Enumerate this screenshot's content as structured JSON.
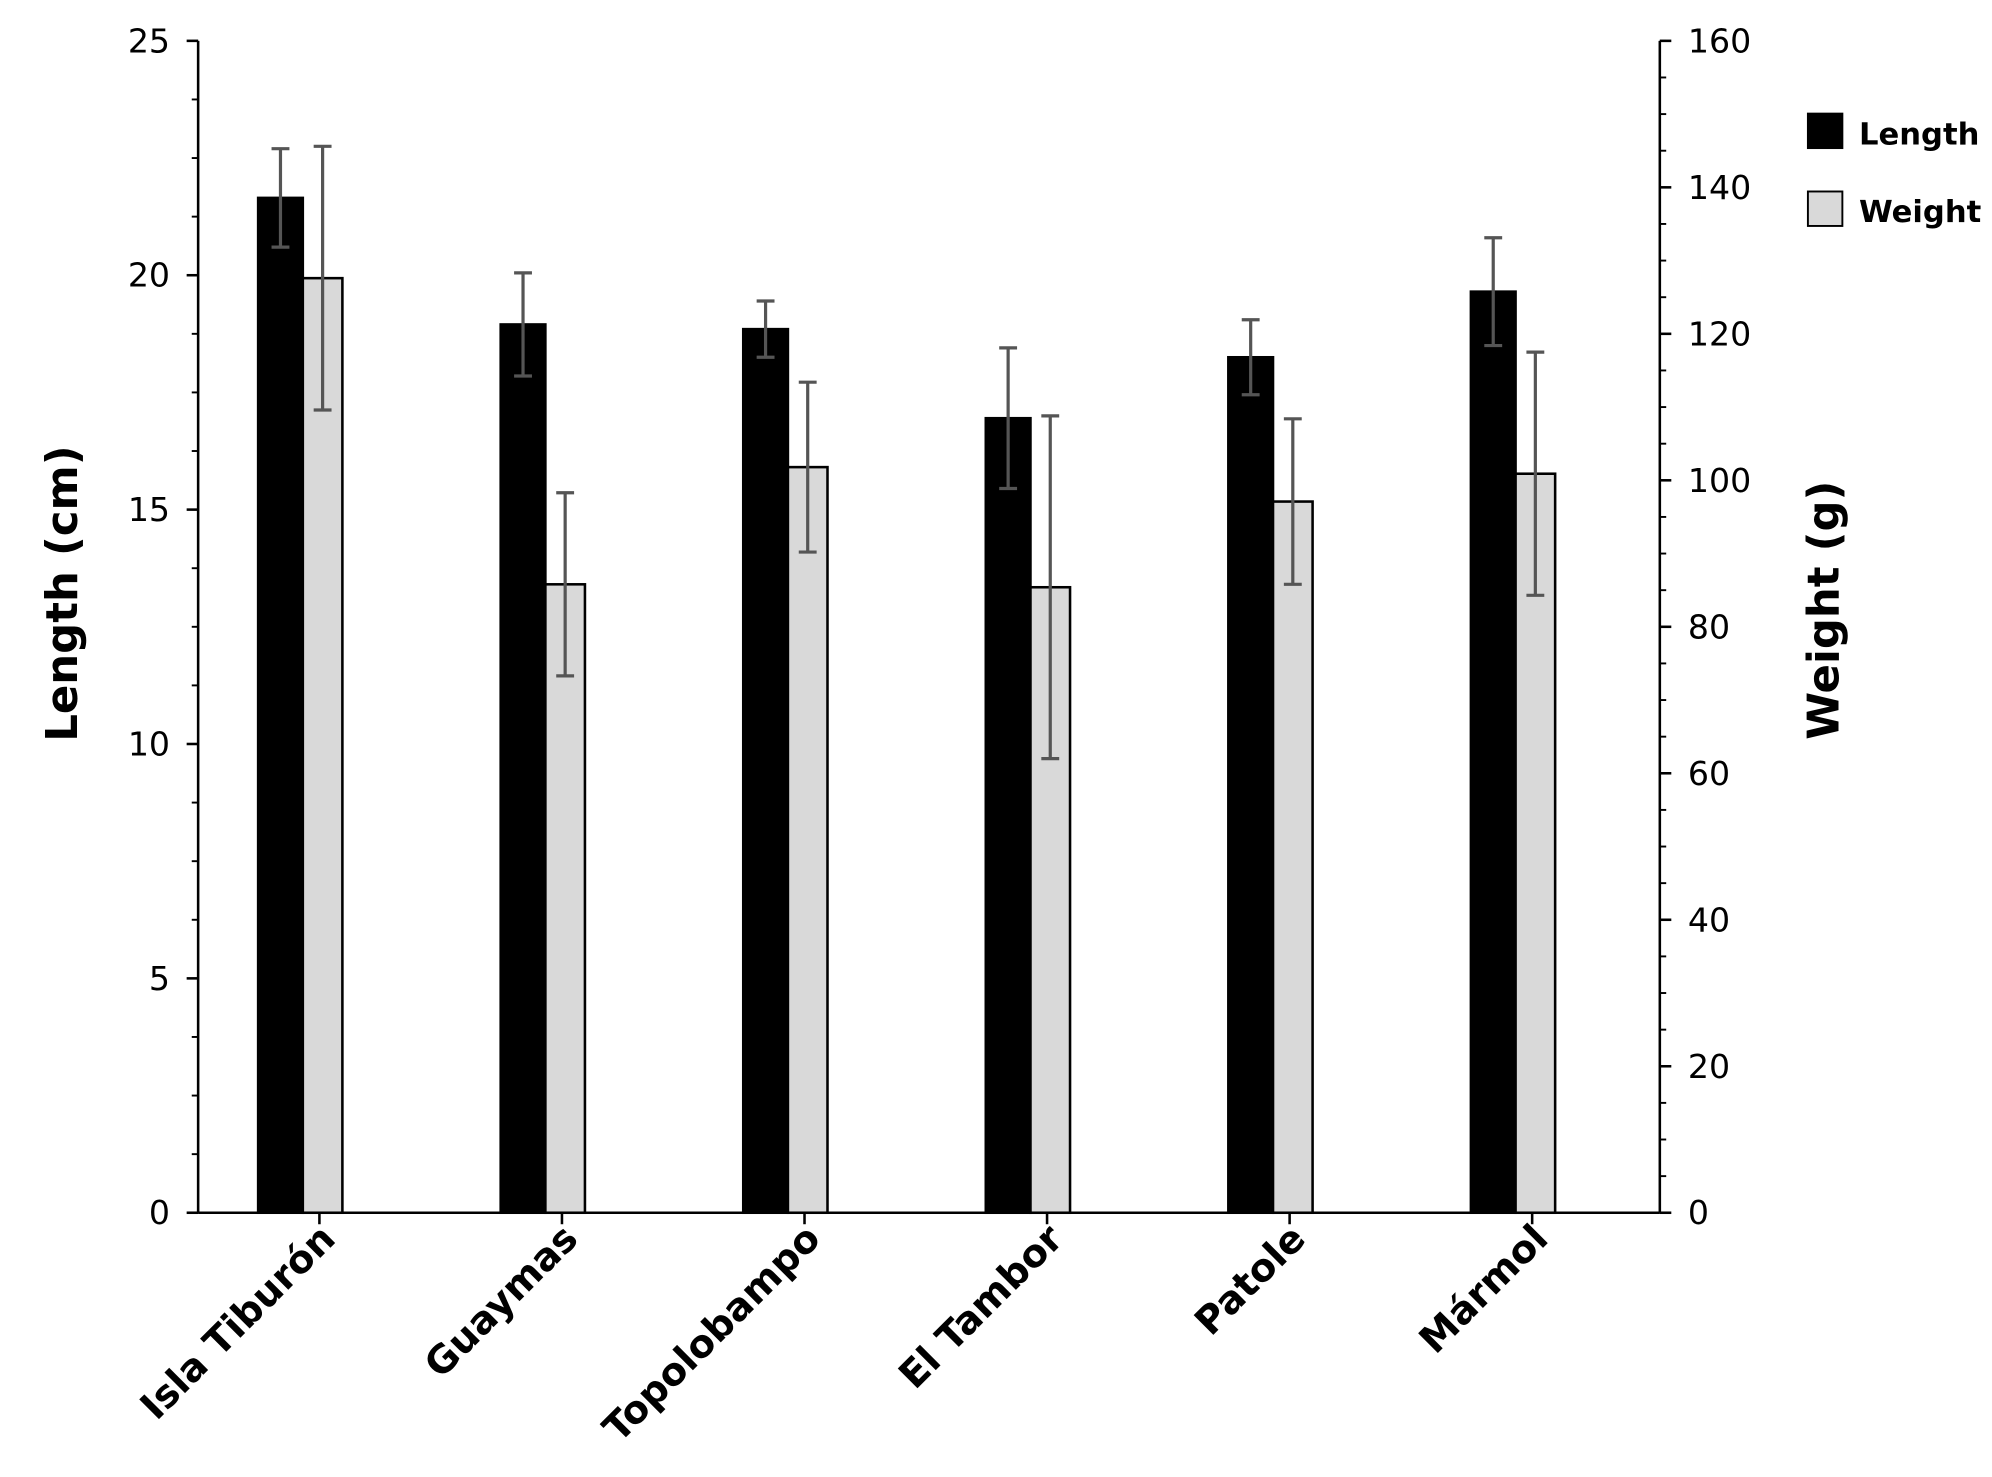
{
  "chart_data": {
    "type": "bar",
    "categories": [
      "Isla Tiburón",
      "Guaymas",
      "Topolobampo",
      "El Tambor",
      "Patole",
      "Mármol"
    ],
    "series": [
      {
        "name": "Length",
        "axis": "left",
        "color": "#000000",
        "values": [
          21.65,
          18.95,
          18.85,
          16.95,
          18.25,
          19.65
        ],
        "errors": [
          1.05,
          1.1,
          0.6,
          1.5,
          0.8,
          1.15
        ]
      },
      {
        "name": "Weight",
        "axis": "right",
        "color": "#d9d9d9",
        "values": [
          127.6,
          85.8,
          101.8,
          85.4,
          97.1,
          100.9
        ],
        "errors": [
          18,
          12.5,
          11.6,
          23.4,
          11.3,
          16.6
        ]
      }
    ],
    "ylabel": "Length (cm)",
    "y2label": "Weight (g)",
    "ylim": [
      0,
      25
    ],
    "y2lim": [
      0,
      160
    ],
    "yticks": [
      0,
      5,
      10,
      15,
      20,
      25
    ],
    "y2ticks": [
      0,
      20,
      40,
      60,
      80,
      100,
      120,
      140,
      160
    ],
    "grid": false,
    "legend_position": "top-right"
  }
}
